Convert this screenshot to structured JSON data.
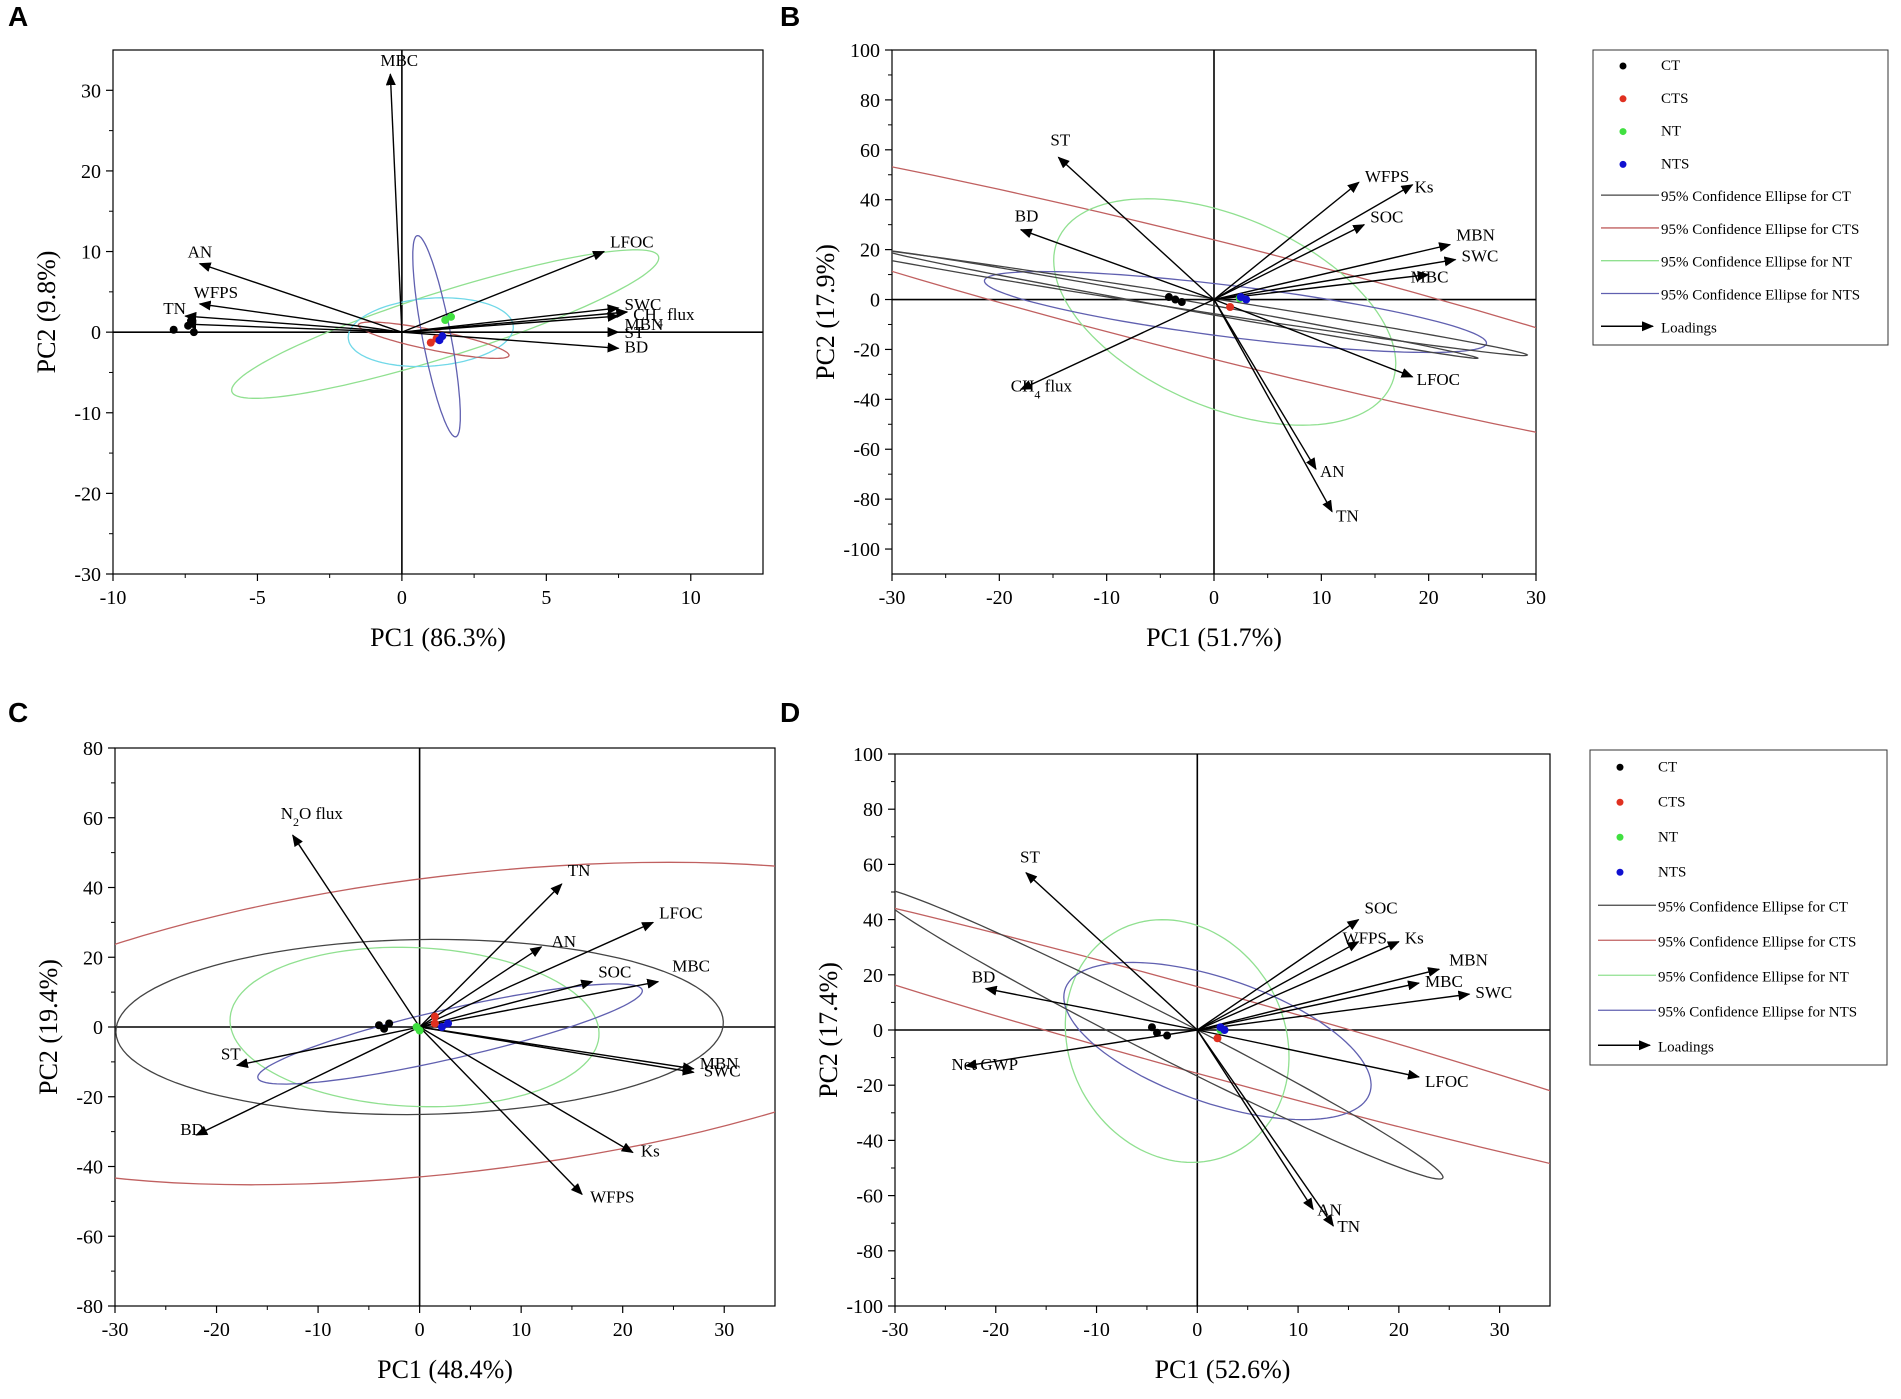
{
  "figure_title": "",
  "legend_entries": [
    "CT",
    "CTS",
    "NT",
    "NTS",
    "95% Confidence Ellipse for CT",
    "95% Confidence Ellipse for CTS",
    "95% Confidence Ellipse for NT",
    "95% Confidence Ellipse for NTS",
    "Loadings"
  ],
  "group_colors": {
    "CT": "#000000",
    "CTS": "#e03020",
    "NT": "#40e040",
    "NTS": "#1010d0"
  },
  "ellipse_colors": {
    "CT": "#444444",
    "CTS": "#c06060",
    "NT": "#90e090",
    "NTS": "#6060b0",
    "NT_A2": "#70d8e8"
  },
  "chart_data": [
    {
      "panel": "A",
      "type": "scatter",
      "subtype": "pca_biplot",
      "xlabel": "PC1 (86.3%)",
      "ylabel": "PC2 (9.8%)",
      "xlim": [
        -10,
        12.5
      ],
      "ylim": [
        -30,
        35
      ],
      "xticks": [
        -10,
        -5,
        0,
        5,
        10
      ],
      "yticks": [
        -30,
        -20,
        -10,
        0,
        10,
        20,
        30
      ],
      "loadings": [
        {
          "name": "MBC",
          "x": -0.4,
          "y": 32
        },
        {
          "name": "AN",
          "x": -7,
          "y": 8.5
        },
        {
          "name": "WFPS",
          "x": -7,
          "y": 3.5
        },
        {
          "name": "TN",
          "x": -7.5,
          "y": 2
        },
        {
          "name": "",
          "x": -7.5,
          "y": 1
        },
        {
          "name": "LFOC",
          "x": 7,
          "y": 10
        },
        {
          "name": "SWC",
          "x": 7.5,
          "y": 3
        },
        {
          "name": "CH4 flux",
          "x": 7.8,
          "y": 2.5
        },
        {
          "name": "MBN",
          "x": 7.5,
          "y": 2
        },
        {
          "name": "ST",
          "x": 7.5,
          "y": 0
        },
        {
          "name": "BD",
          "x": 7.5,
          "y": -2
        }
      ],
      "scores": {
        "CT": [
          [
            -7.9,
            0.3
          ],
          [
            -7.4,
            0.8
          ],
          [
            -7.3,
            1.4
          ],
          [
            -7.2,
            0
          ]
        ],
        "CTS": [
          [
            1,
            -1.3
          ],
          [
            1.2,
            -0.8
          ]
        ],
        "NT": [
          [
            1.5,
            1.5
          ],
          [
            1.7,
            1.9
          ]
        ],
        "NTS": [
          [
            1.3,
            -1
          ],
          [
            1.4,
            -0.5
          ]
        ]
      },
      "ellipses": [
        {
          "group": "NT",
          "cx": 1.5,
          "cy": 1,
          "a": 11.5,
          "b": 2.7,
          "angle": 52
        },
        {
          "group": "NT_A2",
          "cx": 1,
          "cy": 0,
          "a": 4.3,
          "b": 2.8,
          "angle": 80
        },
        {
          "group": "CTS",
          "cx": 1.1,
          "cy": -1,
          "a": 3.3,
          "b": 1,
          "angle": -40
        },
        {
          "group": "NTS",
          "cx": 1.2,
          "cy": -0.5,
          "a": 12.5,
          "b": 0.5,
          "angle": 93
        }
      ]
    },
    {
      "panel": "B",
      "type": "scatter",
      "subtype": "pca_biplot",
      "xlabel": "PC1 (51.7%)",
      "ylabel": "PC2 (17.9%)",
      "xlim": [
        -30,
        30
      ],
      "ylim": [
        -110,
        100
      ],
      "xticks": [
        -30,
        -20,
        -10,
        0,
        10,
        20,
        30
      ],
      "yticks": [
        -100,
        -80,
        -60,
        -40,
        -20,
        0,
        20,
        40,
        60,
        80,
        100
      ],
      "loadings": [
        {
          "name": "ST",
          "x": -14.5,
          "y": 57
        },
        {
          "name": "BD",
          "x": -18,
          "y": 28
        },
        {
          "name": "CH4 flux",
          "x": -18,
          "y": -36
        },
        {
          "name": "WFPS",
          "x": 13.5,
          "y": 47
        },
        {
          "name": "Ks",
          "x": 18.5,
          "y": 46
        },
        {
          "name": "SOC",
          "x": 14,
          "y": 30
        },
        {
          "name": "MBN",
          "x": 22,
          "y": 22
        },
        {
          "name": "SWC",
          "x": 22.5,
          "y": 16
        },
        {
          "name": "MBC",
          "x": 20,
          "y": 10
        },
        {
          "name": "LFOC",
          "x": 18.5,
          "y": -31
        },
        {
          "name": "AN",
          "x": 9.5,
          "y": -68
        },
        {
          "name": "TN",
          "x": 11,
          "y": -85
        }
      ],
      "scores": {
        "CT": [
          [
            -4.2,
            1
          ],
          [
            -3.6,
            0
          ],
          [
            -3,
            -1
          ]
        ],
        "CTS": [
          [
            1.5,
            -3
          ]
        ],
        "NT": [
          [
            2.4,
            0.5
          ]
        ],
        "NTS": [
          [
            2.5,
            1
          ],
          [
            3,
            0
          ]
        ]
      },
      "ellipses": [
        {
          "group": "CTS",
          "cx": 0,
          "cy": 0,
          "a": 93,
          "b": 16,
          "angle": -49
        },
        {
          "group": "NT",
          "cx": 1,
          "cy": -5,
          "a": 46,
          "b": 14,
          "angle": -80
        },
        {
          "group": "NTS",
          "cx": 2,
          "cy": -5,
          "a": 27,
          "b": 9,
          "angle": -32
        },
        {
          "group": "CT",
          "cx": -4,
          "cy": 0,
          "a": 40,
          "b": 2.5,
          "angle": -34
        },
        {
          "group": "CT",
          "cx": -3,
          "cy": -2,
          "a": 35,
          "b": 1.5,
          "angle": -38
        }
      ]
    },
    {
      "panel": "C",
      "type": "scatter",
      "subtype": "pca_biplot",
      "xlabel": "PC1 (48.4%)",
      "ylabel": "PC2 (19.4%)",
      "xlim": [
        -30,
        35
      ],
      "ylim": [
        -80,
        80
      ],
      "xticks": [
        -30,
        -20,
        -10,
        0,
        10,
        20,
        30
      ],
      "yticks": [
        -80,
        -60,
        -40,
        -20,
        0,
        20,
        40,
        60,
        80
      ],
      "loadings": [
        {
          "name": "N2O flux",
          "x": -12.5,
          "y": 55
        },
        {
          "name": "ST",
          "x": -18,
          "y": -11
        },
        {
          "name": "BD",
          "x": -22,
          "y": -31
        },
        {
          "name": "TN",
          "x": 14,
          "y": 41
        },
        {
          "name": "LFOC",
          "x": 23,
          "y": 30
        },
        {
          "name": "AN",
          "x": 12,
          "y": 23
        },
        {
          "name": "SOC",
          "x": 17,
          "y": 13
        },
        {
          "name": "MBC",
          "x": 23.5,
          "y": 13
        },
        {
          "name": "MBN",
          "x": 27,
          "y": -12
        },
        {
          "name": "SWC",
          "x": 27,
          "y": -13
        },
        {
          "name": "Ks",
          "x": 21,
          "y": -36
        },
        {
          "name": "WFPS",
          "x": 16,
          "y": -48
        }
      ],
      "scores": {
        "CT": [
          [
            -4,
            0.5
          ],
          [
            -3.5,
            -0.5
          ],
          [
            -3,
            1
          ]
        ],
        "CTS": [
          [
            1.5,
            3
          ],
          [
            1.5,
            1
          ]
        ],
        "NT": [
          [
            0,
            -1
          ],
          [
            -0.3,
            0
          ]
        ],
        "NTS": [
          [
            2.2,
            0
          ],
          [
            2.8,
            1
          ]
        ]
      },
      "ellipses": [
        {
          "group": "CTS",
          "cx": 4,
          "cy": 1,
          "a": 60,
          "b": 39,
          "angle": 33
        },
        {
          "group": "CT",
          "cx": 0,
          "cy": 0,
          "a": 30,
          "b": 25,
          "angle": 8
        },
        {
          "group": "NT",
          "cx": -0.5,
          "cy": 0,
          "a": 23,
          "b": 18,
          "angle": -80
        },
        {
          "group": "NTS",
          "cx": 3,
          "cy": -2,
          "a": 23,
          "b": 6,
          "angle": 36
        }
      ]
    },
    {
      "panel": "D",
      "type": "scatter",
      "subtype": "pca_biplot",
      "xlabel": "PC1 (52.6%)",
      "ylabel": "PC2 (17.4%)",
      "xlim": [
        -30,
        35
      ],
      "ylim": [
        -100,
        100
      ],
      "xticks": [
        -30,
        -20,
        -10,
        0,
        10,
        20,
        30
      ],
      "yticks": [
        -100,
        -80,
        -60,
        -40,
        -20,
        0,
        20,
        40,
        60,
        80,
        100
      ],
      "loadings": [
        {
          "name": "ST",
          "x": -17,
          "y": 57
        },
        {
          "name": "BD",
          "x": -21,
          "y": 15
        },
        {
          "name": "Net GWP",
          "x": -23,
          "y": -13
        },
        {
          "name": "SOC",
          "x": 16,
          "y": 40
        },
        {
          "name": "WFPS",
          "x": 16,
          "y": 32
        },
        {
          "name": "Ks",
          "x": 20,
          "y": 32
        },
        {
          "name": "MBN",
          "x": 24,
          "y": 22
        },
        {
          "name": "MBC",
          "x": 22,
          "y": 17
        },
        {
          "name": "SWC",
          "x": 27,
          "y": 13
        },
        {
          "name": "LFOC",
          "x": 22,
          "y": -17
        },
        {
          "name": "AN",
          "x": 11.5,
          "y": -65
        },
        {
          "name": "TN",
          "x": 13.5,
          "y": -71
        }
      ],
      "scores": {
        "CT": [
          [
            -4.5,
            1
          ],
          [
            -4,
            -1
          ],
          [
            -3,
            -2
          ]
        ],
        "CTS": [
          [
            2,
            -3
          ]
        ],
        "NT": [
          [
            2.3,
            0
          ]
        ],
        "NTS": [
          [
            2.3,
            1
          ],
          [
            2.7,
            0
          ]
        ]
      },
      "ellipses": [
        {
          "group": "CTS",
          "cx": 0,
          "cy": 0,
          "a": 92,
          "b": 11,
          "angle": -46
        },
        {
          "group": "NT",
          "cx": -2,
          "cy": -4,
          "a": 44,
          "b": 11,
          "angle": -88
        },
        {
          "group": "NTS",
          "cx": 2,
          "cy": -4,
          "a": 30,
          "b": 12,
          "angle": -70
        },
        {
          "group": "CT",
          "cx": -4,
          "cy": -1,
          "a": 60,
          "b": 4,
          "angle": -62
        }
      ]
    }
  ],
  "panels": [
    {
      "id": "A",
      "legend": false
    },
    {
      "id": "B",
      "legend": true
    },
    {
      "id": "C",
      "legend": false
    },
    {
      "id": "D",
      "legend": true
    }
  ]
}
